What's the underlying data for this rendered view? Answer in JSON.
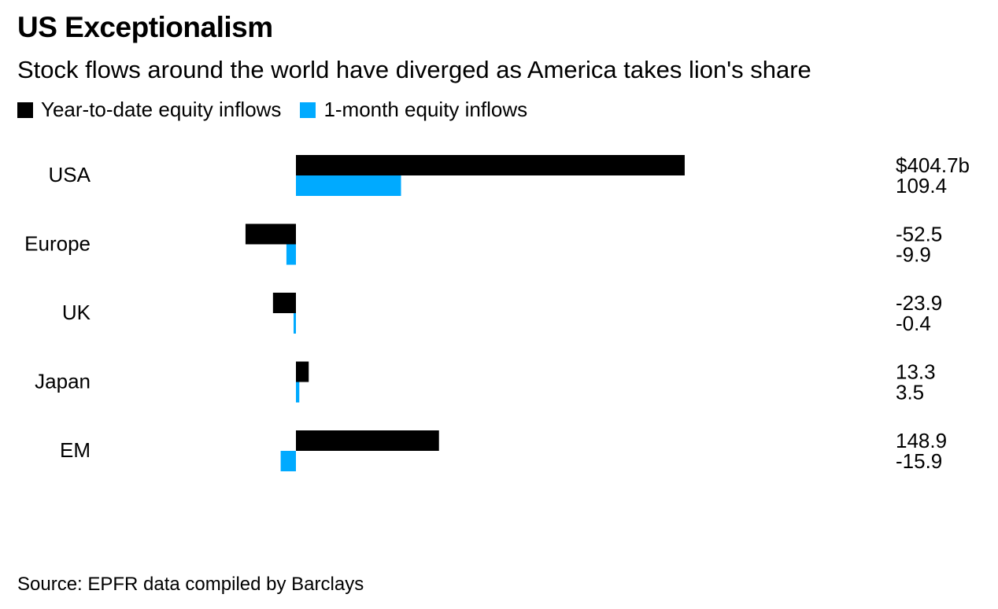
{
  "title": "US Exceptionalism",
  "subtitle": "Stock flows around the world have diverged as America takes lion's share",
  "legend": [
    {
      "label": "Year-to-date equity inflows",
      "color": "#000000"
    },
    {
      "label": "1-month equity inflows",
      "color": "#00aaff"
    }
  ],
  "source": "Source: EPFR data compiled by Barclays",
  "chart_data": {
    "type": "bar",
    "orientation": "horizontal",
    "categories": [
      "USA",
      "Europe",
      "UK",
      "Japan",
      "EM"
    ],
    "series": [
      {
        "name": "Year-to-date equity inflows",
        "color": "#000000",
        "values": [
          404.7,
          -52.5,
          -23.9,
          13.3,
          148.9
        ],
        "labels": [
          "$404.7b",
          "-52.5",
          "-23.9",
          "13.3",
          "148.9"
        ]
      },
      {
        "name": "1-month equity inflows",
        "color": "#00aaff",
        "values": [
          109.4,
          -9.9,
          -0.4,
          3.5,
          -15.9
        ],
        "labels": [
          "109.4",
          "-9.9",
          "-0.4",
          "3.5",
          "-15.9"
        ]
      }
    ],
    "unit": "$b",
    "grid": false
  }
}
